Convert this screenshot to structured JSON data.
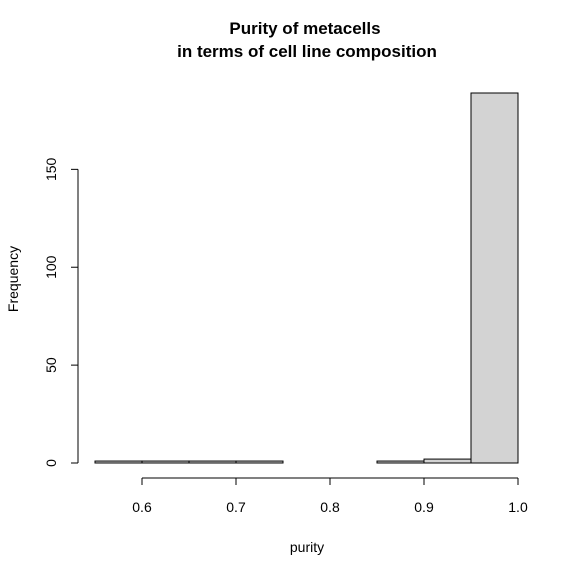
{
  "chart_data": {
    "type": "bar",
    "title": "Purity of metacells",
    "subtitle": "in terms of cell line composition",
    "xlabel": "purity",
    "ylabel": "Frequency",
    "bins": [
      {
        "start": 0.55,
        "end": 0.6,
        "count": 1
      },
      {
        "start": 0.6,
        "end": 0.65,
        "count": 1
      },
      {
        "start": 0.65,
        "end": 0.7,
        "count": 1
      },
      {
        "start": 0.7,
        "end": 0.75,
        "count": 1
      },
      {
        "start": 0.75,
        "end": 0.8,
        "count": 0
      },
      {
        "start": 0.8,
        "end": 0.85,
        "count": 0
      },
      {
        "start": 0.85,
        "end": 0.9,
        "count": 1
      },
      {
        "start": 0.9,
        "end": 0.95,
        "count": 2
      },
      {
        "start": 0.95,
        "end": 1.0,
        "count": 189
      }
    ],
    "xticks": [
      0.6,
      0.7,
      0.8,
      0.9,
      1.0
    ],
    "xtick_labels": [
      "0.6",
      "0.7",
      "0.8",
      "0.9",
      "1.0"
    ],
    "yticks": [
      0,
      50,
      100,
      150
    ],
    "ytick_labels": [
      "0",
      "50",
      "100",
      "150"
    ],
    "xlim": [
      0.55,
      1.0
    ],
    "ylim": [
      0,
      189
    ],
    "bar_fill": "#d3d3d3",
    "bar_stroke": "#000000",
    "grid": false,
    "legend": "none"
  }
}
